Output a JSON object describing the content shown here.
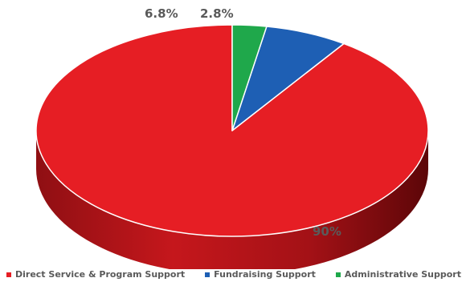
{
  "chart_data": {
    "type": "pie",
    "categories": [
      "Direct Service & Program Support",
      "Fundraising Support",
      "Administrative Support"
    ],
    "values": [
      90,
      6.8,
      2.8
    ],
    "data_labels": [
      "90%",
      "6.8%",
      "2.8%"
    ],
    "colors": [
      "#e61e24",
      "#1e5fb4",
      "#1fa84b"
    ],
    "legend_position": "bottom",
    "title": "",
    "style": "3d"
  }
}
